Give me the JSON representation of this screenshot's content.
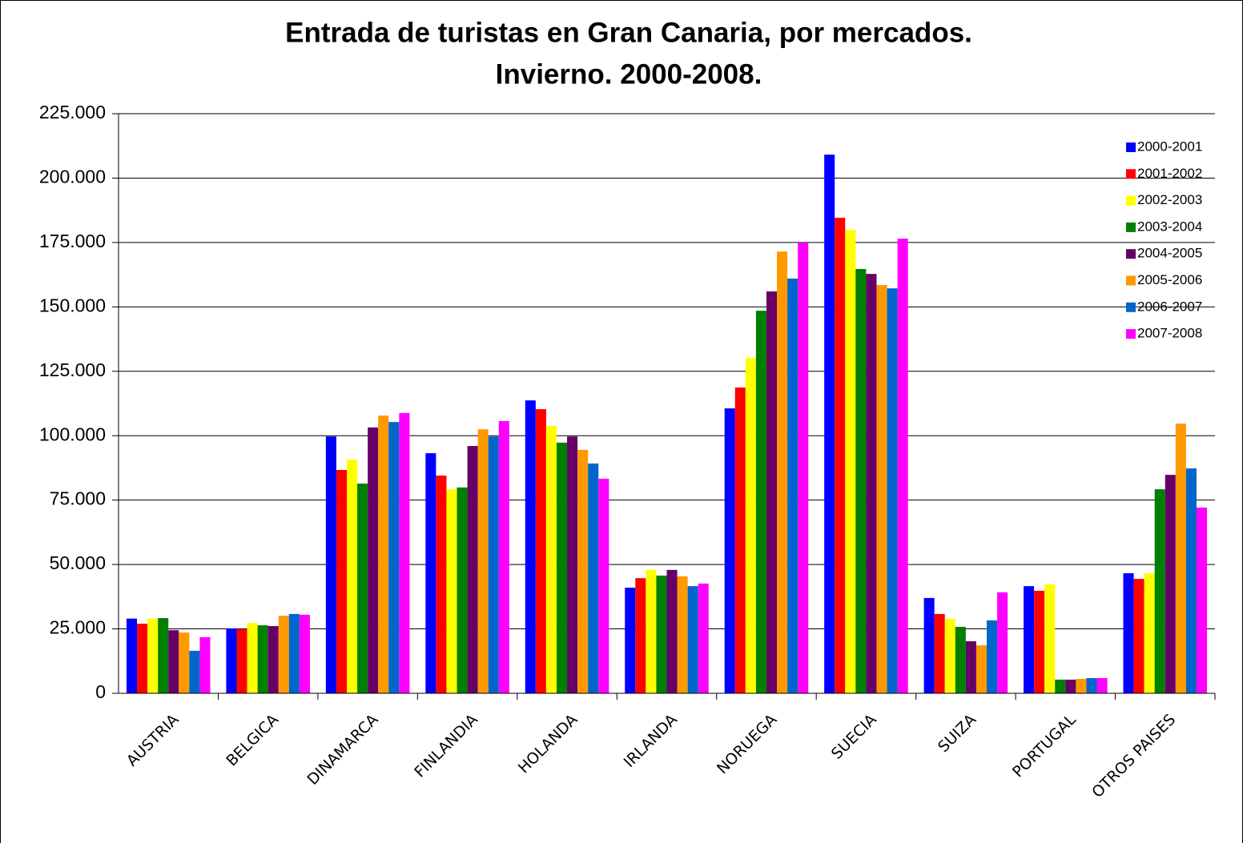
{
  "chart_data": {
    "type": "bar",
    "title": [
      "Entrada de turistas en Gran Canaria, por mercados.",
      "Invierno. 2000-2008."
    ],
    "categories": [
      "AUSTRIA",
      "BELGICA",
      "DINAMARCA",
      "FINLANDIA",
      "HOLANDA",
      "IRLANDA",
      "NORUEGA",
      "SUECIA",
      "SUIZA",
      "PORTUGAL",
      "OTROS PAISES"
    ],
    "series": [
      {
        "name": "2000-2001",
        "color": "#0000ff",
        "values": [
          29000,
          25200,
          99700,
          93200,
          113700,
          41000,
          110600,
          209100,
          37000,
          41600,
          46600
        ]
      },
      {
        "name": "2001-2002",
        "color": "#ff0000",
        "values": [
          27000,
          24900,
          86700,
          84500,
          110300,
          44700,
          118700,
          184600,
          30800,
          39800,
          44400
        ]
      },
      {
        "name": "2002-2003",
        "color": "#ffff00",
        "values": [
          29000,
          27300,
          90700,
          79200,
          103800,
          47900,
          130200,
          179900,
          28900,
          42300,
          46600
        ]
      },
      {
        "name": "2003-2004",
        "color": "#008000",
        "values": [
          29200,
          26400,
          81400,
          79900,
          97300,
          45700,
          148500,
          164700,
          25800,
          5300,
          79200
        ]
      },
      {
        "name": "2004-2005",
        "color": "#660066",
        "values": [
          24500,
          26100,
          103200,
          96000,
          99700,
          47900,
          156000,
          162800,
          20200,
          5300,
          84800
        ]
      },
      {
        "name": "2005-2006",
        "color": "#ff9900",
        "values": [
          23600,
          30100,
          107800,
          102500,
          94500,
          45400,
          171500,
          158500,
          18600,
          5600,
          104700
        ]
      },
      {
        "name": "2006-2007",
        "color": "#0066cc",
        "values": [
          16500,
          30800,
          105300,
          99700,
          89200,
          41600,
          161000,
          157200,
          28300,
          5900,
          87300
        ]
      },
      {
        "name": "2007-2008",
        "color": "#ff00ff",
        "values": [
          21800,
          30500,
          108800,
          105700,
          83300,
          42600,
          175000,
          176500,
          39200,
          5900,
          72100
        ]
      }
    ],
    "ylim": [
      0,
      225000
    ],
    "yticks": [
      0,
      {
        "value": 25000,
        "label": "25.000"
      },
      {
        "value": 50000,
        "label": "50.000"
      },
      {
        "value": 75000,
        "label": "75.000"
      },
      {
        "value": 100000,
        "label": "100.000"
      },
      {
        "value": 125000,
        "label": "125.000"
      },
      {
        "value": 150000,
        "label": "150.000"
      },
      {
        "value": 175000,
        "label": "175.000"
      },
      {
        "value": 200000,
        "label": "200.000"
      },
      {
        "value": 225000,
        "label": "225.000"
      }
    ],
    "grid": true,
    "legend": "top-right"
  }
}
